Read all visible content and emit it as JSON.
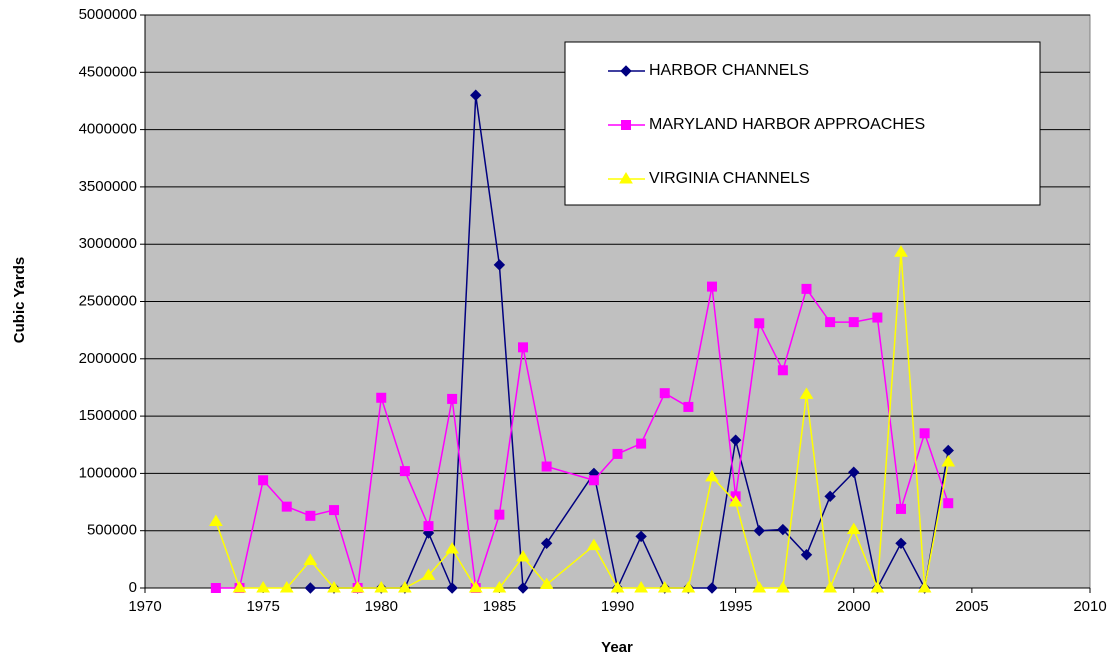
{
  "chart_data": {
    "type": "line",
    "x_label": "Year",
    "y_label": "Cubic Yards",
    "xlim": [
      1970,
      2010
    ],
    "xticks": [
      1970,
      1975,
      1980,
      1985,
      1990,
      1995,
      2000,
      2005,
      2010
    ],
    "ylim": [
      0,
      5000000
    ],
    "yticks": [
      0,
      500000,
      1000000,
      1500000,
      2000000,
      2500000,
      3000000,
      3500000,
      4000000,
      4500000,
      5000000
    ],
    "grid": true,
    "legend": "upper right",
    "background": "#c0c0c0",
    "series": [
      {
        "name": "HARBOR CHANNELS",
        "color": "#000080",
        "marker": "diamond",
        "x": [
          1977,
          1978,
          1979,
          1980,
          1981,
          1982,
          1983,
          1984,
          1985,
          1986,
          1987,
          1989,
          1990,
          1991,
          1992,
          1993,
          1994,
          1995,
          1996,
          1997,
          1998,
          1999,
          2000,
          2001,
          2002,
          2003,
          2004
        ],
        "values": [
          0,
          0,
          0,
          0,
          0,
          480000,
          0,
          4300000,
          2820000,
          0,
          390000,
          1000000,
          0,
          450000,
          0,
          0,
          0,
          1290000,
          500000,
          510000,
          290000,
          800000,
          1010000,
          0,
          390000,
          0,
          1200000
        ]
      },
      {
        "name": "MARYLAND HARBOR APPROACHES",
        "color": "#ff00ff",
        "marker": "square",
        "x": [
          1973,
          1974,
          1975,
          1976,
          1977,
          1978,
          1979,
          1980,
          1981,
          1982,
          1983,
          1984,
          1985,
          1986,
          1987,
          1989,
          1990,
          1991,
          1992,
          1993,
          1994,
          1995,
          1996,
          1997,
          1998,
          1999,
          2000,
          2001,
          2002,
          2003,
          2004
        ],
        "values": [
          0,
          0,
          940000,
          710000,
          630000,
          680000,
          0,
          1660000,
          1020000,
          540000,
          1650000,
          0,
          640000,
          2100000,
          1060000,
          940000,
          1170000,
          1260000,
          1700000,
          1580000,
          2630000,
          800000,
          2310000,
          1900000,
          2610000,
          2320000,
          2320000,
          2360000,
          690000,
          1350000,
          740000
        ]
      },
      {
        "name": "VIRGINIA CHANNELS",
        "color": "#ffff00",
        "marker": "triangle",
        "x": [
          1973,
          1974,
          1975,
          1976,
          1977,
          1978,
          1979,
          1980,
          1981,
          1982,
          1983,
          1984,
          1985,
          1986,
          1987,
          1989,
          1990,
          1991,
          1992,
          1993,
          1994,
          1995,
          1996,
          1997,
          1998,
          1999,
          2000,
          2001,
          2002,
          2003,
          2004
        ],
        "values": [
          580000,
          0,
          0,
          0,
          240000,
          0,
          0,
          0,
          0,
          110000,
          340000,
          0,
          0,
          270000,
          30000,
          370000,
          0,
          0,
          0,
          0,
          970000,
          750000,
          0,
          0,
          1690000,
          0,
          510000,
          0,
          2930000,
          0,
          1100000
        ]
      }
    ]
  }
}
